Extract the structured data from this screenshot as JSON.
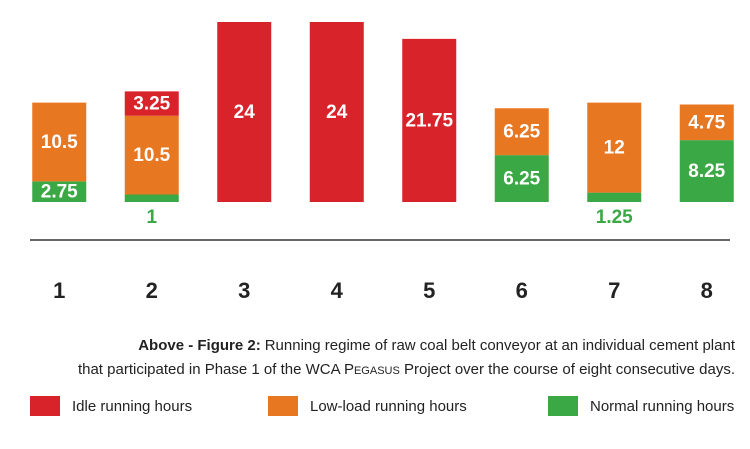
{
  "chart_data": {
    "type": "stacked_bar",
    "categories": [
      "1",
      "2",
      "3",
      "4",
      "5",
      "6",
      "7",
      "8"
    ],
    "series": [
      {
        "name": "Normal running hours",
        "color": "#3aa845",
        "values": [
          2.75,
          1,
          null,
          null,
          null,
          6.25,
          1.25,
          8.25
        ]
      },
      {
        "name": "Low-load running hours",
        "color": "#e87722",
        "values": [
          10.5,
          10.5,
          null,
          null,
          null,
          6.25,
          12,
          4.75
        ]
      },
      {
        "name": "Idle running hours",
        "color": "#d9232a",
        "values": [
          null,
          3.25,
          24,
          24,
          21.75,
          null,
          null,
          null
        ]
      }
    ],
    "legend_order": [
      2,
      1,
      0
    ]
  },
  "caption": {
    "label": "Above - Figure 2:",
    "line1": "Running regime of raw coal belt conveyor at an individual cement plant",
    "line2_start": "that participated in Phase 1 of the WCA ",
    "line2_name": "Pegasus",
    "line2_end": " Project over the course of eight consecutive days."
  }
}
